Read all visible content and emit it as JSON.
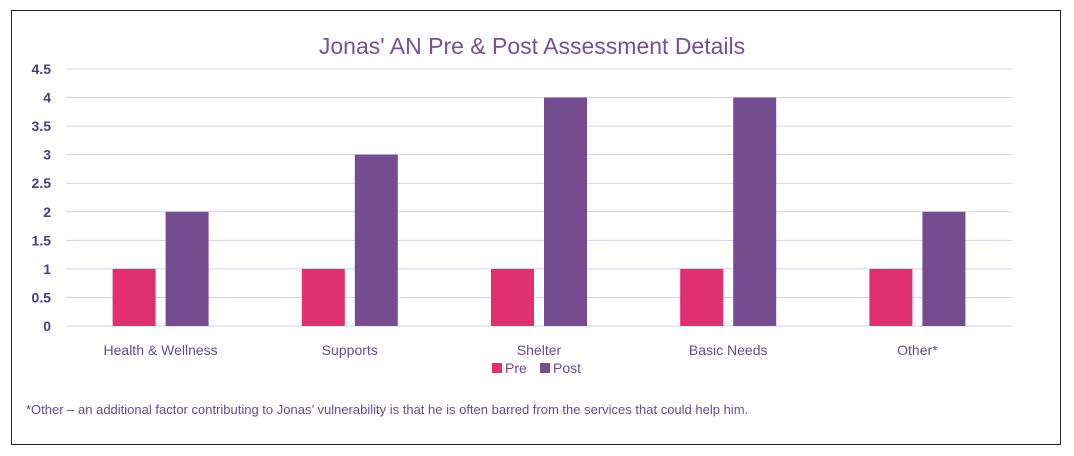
{
  "chart_data": {
    "type": "bar",
    "title": "Jonas' AN Pre & Post Assessment Details",
    "xlabel": "",
    "ylabel": "",
    "categories": [
      "Health & Wellness",
      "Supports",
      "Shelter",
      "Basic Needs",
      "Other*"
    ],
    "series": [
      {
        "name": "Pre",
        "values": [
          1,
          1,
          1,
          1,
          1
        ],
        "color": "#E0306F"
      },
      {
        "name": "Post",
        "values": [
          2,
          3,
          4,
          4,
          2
        ],
        "color": "#764C91"
      }
    ],
    "ylim": [
      0,
      4.5
    ],
    "yticks": [
      "0",
      "0.5",
      "1",
      "1.5",
      "2",
      "2.5",
      "3",
      "3.5",
      "4",
      "4.5"
    ],
    "grid": true,
    "gridline_color": "#D6D2EC",
    "legend_position": "bottom",
    "footnote": "*Other – an additional factor contributing to Jonas’ vulnerability is that he is often barred from the services that could help him."
  }
}
